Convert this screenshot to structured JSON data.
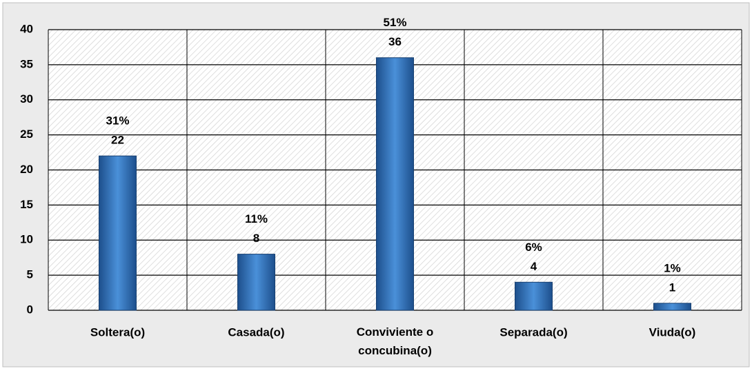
{
  "chart_data": {
    "type": "bar",
    "categories": [
      "Soltera(o)",
      "Casada(o)",
      "Conviviente o concubina(o)",
      "Separada(o)",
      "Viuda(o)"
    ],
    "values": [
      22,
      8,
      36,
      4,
      1
    ],
    "percent_labels": [
      "31%",
      "11%",
      "51%",
      "6%",
      "1%"
    ],
    "color": "#2e6db4",
    "ylim": [
      0,
      40
    ],
    "yticks": [
      0,
      5,
      10,
      15,
      20,
      25,
      30,
      35,
      40
    ],
    "grid": true
  }
}
